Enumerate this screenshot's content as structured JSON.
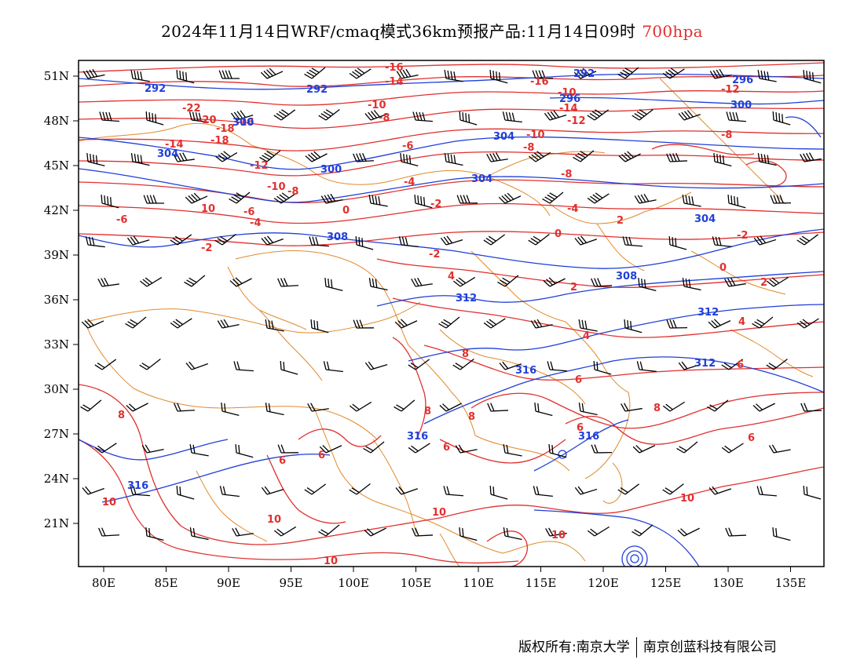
{
  "title": {
    "main": "2024年11月14日WRF/cmaq模式36km预报产品:11月14日09时",
    "level": "700hpa"
  },
  "colors": {
    "temperature": "#e0302e",
    "geopotential": "#1f3fd8",
    "boundary": "#e08a2c",
    "wind": "#000000"
  },
  "lat_labels": [
    "51N",
    "48N",
    "45N",
    "42N",
    "39N",
    "36N",
    "33N",
    "30N",
    "27N",
    "24N",
    "21N"
  ],
  "lon_labels": [
    "80E",
    "85E",
    "90E",
    "95E",
    "100E",
    "105E",
    "110E",
    "115E",
    "120E",
    "125E",
    "130E",
    "135E"
  ],
  "temperature_labels": [
    "-16",
    "-14",
    "-16",
    "-12",
    "-10",
    "-14",
    "-12",
    "-10",
    "-8",
    "-8",
    "-10",
    "-22",
    "-20",
    "-18",
    "-16",
    "-18",
    "-12",
    "-10",
    "-8",
    "-14",
    "-6",
    "-8",
    "-8",
    "-4",
    "-4",
    "-6",
    "-2",
    "-4",
    "0",
    "-6",
    "0",
    "-2",
    "-2",
    "-2",
    "4",
    "2",
    "2",
    "0",
    "2",
    "4",
    "4",
    "6",
    "6",
    "8",
    "8",
    "6",
    "8",
    "6",
    "6",
    "8",
    "6",
    "6",
    "10",
    "10",
    "10",
    "10",
    "10",
    "10",
    "10",
    "8"
  ],
  "height_labels": [
    "292",
    "292",
    "292",
    "296",
    "296",
    "300",
    "300",
    "304",
    "304",
    "300",
    "304",
    "304",
    "308",
    "308",
    "312",
    "312",
    "316",
    "312",
    "316",
    "316",
    "316"
  ],
  "footer": {
    "left": "版权所有:南京大学",
    "right": "南京创蓝科技有限公司"
  }
}
